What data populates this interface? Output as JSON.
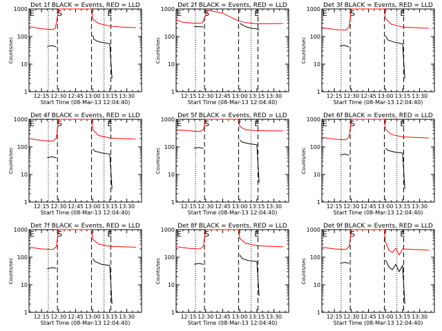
{
  "colors": {
    "events": "#000000",
    "lld": "#ff0000",
    "frame": "#000000",
    "background": "#ffffff"
  },
  "chart_data": [
    {
      "type": "line",
      "title": "Det 1f BLACK = Events, RED = LLD",
      "xlabel": "Start Time (08-Mar-13 12:04:40)",
      "ylabel": "Counts/sec",
      "xlim": [
        "12:04",
        "13:43"
      ],
      "ylim": [
        1,
        1000
      ],
      "yscale": "log",
      "xticks": [
        "12:15",
        "12:30",
        "12:45",
        "13:00",
        "13:15",
        "13:30"
      ],
      "yticks": [
        "1",
        "10",
        "100",
        "1000"
      ],
      "markers": {
        "E": "12:04",
        "S": "12:31",
        "E2": "13:15"
      },
      "dotted_lines": [
        "12:21",
        "13:10"
      ],
      "dashed_lines": [
        "12:29",
        "12:59",
        "13:16"
      ],
      "series": [
        {
          "color": "red",
          "x": [
            "12:04",
            "12:15",
            "12:25",
            "12:27",
            "12:28",
            "12:30",
            "12:59",
            "13:00",
            "13:05",
            "13:15",
            "13:25",
            "13:38"
          ],
          "y": [
            230,
            190,
            180,
            200,
            300,
            1000,
            1000,
            430,
            300,
            240,
            220,
            210
          ]
        },
        {
          "color": "black",
          "x": [
            "12:20",
            "12:23",
            "12:26",
            "12:28"
          ],
          "y": [
            42,
            47,
            45,
            42
          ],
          "segment": 1
        },
        {
          "color": "black",
          "x": [
            "13:00",
            "13:01",
            "13:05",
            "13:10",
            "13:15",
            "13:17"
          ],
          "y": [
            110,
            80,
            65,
            60,
            55,
            3
          ]
        }
      ]
    },
    {
      "type": "line",
      "title": "Det 2f BLACK = Events, RED = LLD",
      "xlabel": "Start Time (08-Mar-13 12:04:40)",
      "ylabel": "Counts/sec",
      "xlim": [
        "12:04",
        "13:43"
      ],
      "ylim": [
        1,
        1000
      ],
      "yscale": "log",
      "xticks": [
        "12:15",
        "12:30",
        "12:45",
        "13:00",
        "13:15",
        "13:30"
      ],
      "yticks": [
        "1",
        "10",
        "100",
        "1000"
      ],
      "markers": {
        "E": "12:04",
        "S": "12:31",
        "E2": "13:15"
      },
      "dotted_lines": [
        "12:21",
        "13:10"
      ],
      "dashed_lines": [
        "12:29",
        "12:59",
        "13:16"
      ],
      "series": [
        {
          "color": "red",
          "x": [
            "12:04",
            "12:10",
            "12:20",
            "12:27",
            "12:32",
            "12:45",
            "12:58",
            "13:05",
            "13:15",
            "13:25",
            "13:38"
          ],
          "y": [
            400,
            330,
            300,
            310,
            900,
            700,
            380,
            320,
            290,
            290,
            300
          ]
        },
        {
          "color": "black",
          "x": [
            "12:20",
            "12:28"
          ],
          "y": [
            230,
            225
          ],
          "segment": 1
        },
        {
          "color": "black",
          "x": [
            "13:00",
            "13:05",
            "13:10",
            "13:15",
            "13:17"
          ],
          "y": [
            300,
            230,
            200,
            190,
            170
          ]
        }
      ]
    },
    {
      "type": "line",
      "title": "Det 3f BLACK = Events, RED = LLD",
      "xlabel": "Start Time (08-Mar-13 12:04:40)",
      "ylabel": "Counts/sec",
      "xlim": [
        "12:04",
        "13:43"
      ],
      "ylim": [
        1,
        1000
      ],
      "yscale": "log",
      "xticks": [
        "12:15",
        "12:30",
        "12:45",
        "13:00",
        "13:15",
        "13:30"
      ],
      "yticks": [
        "1",
        "10",
        "100",
        "1000"
      ],
      "markers": {
        "E": "12:04",
        "S": "12:31",
        "E2": "13:15"
      },
      "dotted_lines": [
        "12:21",
        "13:10"
      ],
      "dashed_lines": [
        "12:29",
        "12:59",
        "13:16"
      ],
      "series": [
        {
          "color": "red",
          "x": [
            "12:04",
            "12:15",
            "12:25",
            "12:28",
            "12:30",
            "12:59",
            "13:00",
            "13:05",
            "13:15",
            "13:25",
            "13:38"
          ],
          "y": [
            210,
            180,
            170,
            220,
            1000,
            1000,
            450,
            280,
            220,
            210,
            200
          ]
        },
        {
          "color": "black",
          "x": [
            "12:20",
            "12:24",
            "12:28"
          ],
          "y": [
            45,
            48,
            42
          ],
          "segment": 1
        },
        {
          "color": "black",
          "x": [
            "13:00",
            "13:02",
            "13:08",
            "13:15",
            "13:17"
          ],
          "y": [
            110,
            75,
            62,
            55,
            3
          ]
        }
      ]
    },
    {
      "type": "line",
      "title": "Det 4f BLACK = Events, RED = LLD",
      "xlabel": "Start Time (08-Mar-13 12:04:40)",
      "ylabel": "Counts/sec",
      "xlim": [
        "12:04",
        "13:43"
      ],
      "ylim": [
        1,
        1000
      ],
      "yscale": "log",
      "xticks": [
        "12:15",
        "12:30",
        "12:45",
        "13:00",
        "13:15",
        "13:30"
      ],
      "yticks": [
        "1",
        "10",
        "100",
        "1000"
      ],
      "markers": {
        "E": "12:04",
        "S": "12:31",
        "E2": "13:15"
      },
      "dotted_lines": [
        "12:21",
        "13:10"
      ],
      "dashed_lines": [
        "12:29",
        "12:59",
        "13:16"
      ],
      "series": [
        {
          "color": "red",
          "x": [
            "12:04",
            "12:15",
            "12:25",
            "12:28",
            "12:30",
            "12:59",
            "13:00",
            "13:05",
            "13:15",
            "13:25",
            "13:38"
          ],
          "y": [
            200,
            170,
            160,
            210,
            1000,
            1000,
            420,
            260,
            210,
            200,
            190
          ]
        },
        {
          "color": "black",
          "x": [
            "12:20",
            "12:24",
            "12:28"
          ],
          "y": [
            40,
            44,
            40
          ],
          "segment": 1
        },
        {
          "color": "black",
          "x": [
            "13:00",
            "13:02",
            "13:08",
            "13:15",
            "13:17"
          ],
          "y": [
            85,
            70,
            60,
            55,
            3
          ]
        }
      ]
    },
    {
      "type": "line",
      "title": "Det 5f BLACK = Events, RED = LLD",
      "xlabel": "Start Time (08-Mar-13 12:04:40)",
      "ylabel": "Counts/sec",
      "xlim": [
        "12:04",
        "13:43"
      ],
      "ylim": [
        1,
        1000
      ],
      "yscale": "log",
      "xticks": [
        "12:15",
        "12:30",
        "12:45",
        "13:00",
        "13:15",
        "13:30"
      ],
      "yticks": [
        "1",
        "10",
        "100",
        "1000"
      ],
      "markers": {
        "E": "12:04",
        "S": "12:31",
        "E2": "13:15"
      },
      "dotted_lines": [
        "12:21",
        "13:10"
      ],
      "dashed_lines": [
        "12:29",
        "12:59",
        "13:16"
      ],
      "series": [
        {
          "color": "red",
          "x": [
            "12:04",
            "12:15",
            "12:25",
            "12:28",
            "12:30",
            "12:59",
            "13:00",
            "13:05",
            "13:15",
            "13:25",
            "13:38"
          ],
          "y": [
            420,
            380,
            360,
            420,
            1000,
            1000,
            550,
            420,
            390,
            380,
            380
          ]
        },
        {
          "color": "black",
          "x": [
            "12:20",
            "12:24",
            "12:28"
          ],
          "y": [
            90,
            95,
            88
          ],
          "segment": 1
        },
        {
          "color": "black",
          "x": [
            "13:00",
            "13:02",
            "13:08",
            "13:15",
            "13:17"
          ],
          "y": [
            180,
            150,
            130,
            120,
            5
          ]
        }
      ]
    },
    {
      "type": "line",
      "title": "Det 6f BLACK = Events, RED = LLD",
      "xlabel": "Start Time (08-Mar-13 12:04:40)",
      "ylabel": "Counts/sec",
      "xlim": [
        "12:04",
        "13:43"
      ],
      "ylim": [
        1,
        1000
      ],
      "yscale": "log",
      "xticks": [
        "12:15",
        "12:30",
        "12:45",
        "13:00",
        "13:15",
        "13:30"
      ],
      "yticks": [
        "1",
        "10",
        "100",
        "1000"
      ],
      "markers": {
        "E": "12:04",
        "S": "12:31",
        "E2": "13:15"
      },
      "dotted_lines": [
        "12:21",
        "13:10"
      ],
      "dashed_lines": [
        "12:29",
        "12:59",
        "13:16"
      ],
      "series": [
        {
          "color": "red",
          "x": [
            "12:04",
            "12:15",
            "12:25",
            "12:28",
            "12:30",
            "12:59",
            "13:00",
            "13:05",
            "13:15",
            "13:25",
            "13:38"
          ],
          "y": [
            220,
            190,
            180,
            230,
            1000,
            1000,
            440,
            280,
            230,
            220,
            210
          ]
        },
        {
          "color": "black",
          "x": [
            "12:20",
            "12:24",
            "12:28"
          ],
          "y": [
            50,
            55,
            50
          ],
          "segment": 1
        },
        {
          "color": "black",
          "x": [
            "13:00",
            "13:02",
            "13:08",
            "13:15",
            "13:17"
          ],
          "y": [
            90,
            75,
            65,
            60,
            3
          ]
        }
      ]
    },
    {
      "type": "line",
      "title": "Det 7f BLACK = Events, RED = LLD",
      "xlabel": "Start Time (08-Mar-13 12:04:40)",
      "ylabel": "Counts/sec",
      "xlim": [
        "12:04",
        "13:43"
      ],
      "ylim": [
        1,
        1000
      ],
      "yscale": "log",
      "xticks": [
        "12:15",
        "12:30",
        "12:45",
        "13:00",
        "13:15",
        "13:30"
      ],
      "yticks": [
        "1",
        "10",
        "100",
        "1000"
      ],
      "markers": {
        "E": "12:04",
        "S": "12:31",
        "E2": "13:15"
      },
      "dotted_lines": [
        "12:21",
        "13:10"
      ],
      "dashed_lines": [
        "12:29",
        "12:59",
        "13:16"
      ],
      "series": [
        {
          "color": "red",
          "x": [
            "12:04",
            "12:15",
            "12:25",
            "12:28",
            "12:30",
            "12:59",
            "13:00",
            "13:05",
            "13:15",
            "13:25",
            "13:38"
          ],
          "y": [
            230,
            200,
            190,
            240,
            1000,
            1000,
            450,
            300,
            250,
            240,
            230
          ]
        },
        {
          "color": "black",
          "x": [
            "12:20",
            "12:24",
            "12:28"
          ],
          "y": [
            38,
            42,
            40
          ],
          "segment": 1
        },
        {
          "color": "black",
          "x": [
            "13:00",
            "13:02",
            "13:08",
            "13:15",
            "13:17"
          ],
          "y": [
            90,
            70,
            55,
            50,
            2
          ]
        }
      ]
    },
    {
      "type": "line",
      "title": "Det 8f BLACK = Events, RED = LLD",
      "xlabel": "Start Time (08-Mar-13 12:04:40)",
      "ylabel": "Counts/sec",
      "xlim": [
        "12:04",
        "13:43"
      ],
      "ylim": [
        1,
        1000
      ],
      "yscale": "log",
      "xticks": [
        "12:15",
        "12:30",
        "12:45",
        "13:00",
        "13:15",
        "13:30"
      ],
      "yticks": [
        "1",
        "10",
        "100",
        "1000"
      ],
      "markers": {
        "E": "12:04",
        "S": "12:31",
        "E2": "13:15"
      },
      "dotted_lines": [
        "12:21",
        "13:10"
      ],
      "dashed_lines": [
        "12:29",
        "12:59",
        "13:16"
      ],
      "series": [
        {
          "color": "red",
          "x": [
            "12:04",
            "12:15",
            "12:25",
            "12:28",
            "12:30",
            "12:59",
            "13:00",
            "13:05",
            "13:15",
            "13:25",
            "13:38"
          ],
          "y": [
            240,
            210,
            200,
            250,
            1000,
            1000,
            480,
            320,
            260,
            250,
            240
          ]
        },
        {
          "color": "black",
          "x": [
            "12:20",
            "12:24",
            "12:28"
          ],
          "y": [
            55,
            60,
            55
          ],
          "segment": 1
        },
        {
          "color": "black",
          "x": [
            "13:00",
            "13:02",
            "13:08",
            "13:15",
            "13:17"
          ],
          "y": [
            120,
            90,
            75,
            70,
            4
          ]
        }
      ]
    },
    {
      "type": "line",
      "title": "Det 9f BLACK = Events, RED = LLD",
      "xlabel": "Start Time (08-Mar-13 12:04:40)",
      "ylabel": "Counts/sec",
      "xlim": [
        "12:04",
        "13:43"
      ],
      "ylim": [
        1,
        1000
      ],
      "yscale": "log",
      "xticks": [
        "12:15",
        "12:30",
        "12:45",
        "13:00",
        "13:15",
        "13:30"
      ],
      "yticks": [
        "1",
        "10",
        "100",
        "1000"
      ],
      "markers": {
        "E": "12:04",
        "S": "12:31",
        "E2": "13:15"
      },
      "dotted_lines": [
        "12:21",
        "13:10"
      ],
      "dashed_lines": [
        "12:29",
        "12:59",
        "13:16"
      ],
      "series": [
        {
          "color": "red",
          "x": [
            "12:04",
            "12:15",
            "12:25",
            "12:28",
            "12:30",
            "12:59",
            "13:00",
            "13:03",
            "13:06",
            "13:09",
            "13:12",
            "13:15",
            "13:25",
            "13:38"
          ],
          "y": [
            230,
            200,
            190,
            240,
            1000,
            1000,
            350,
            180,
            150,
            210,
            120,
            200,
            190,
            180
          ]
        },
        {
          "color": "black",
          "x": [
            "12:20",
            "12:24",
            "12:28"
          ],
          "y": [
            60,
            65,
            60
          ],
          "segment": 1
        },
        {
          "color": "black",
          "x": [
            "13:00",
            "13:03",
            "13:06",
            "13:09",
            "13:12",
            "13:15",
            "13:17"
          ],
          "y": [
            80,
            45,
            35,
            55,
            30,
            50,
            2
          ]
        }
      ]
    }
  ]
}
